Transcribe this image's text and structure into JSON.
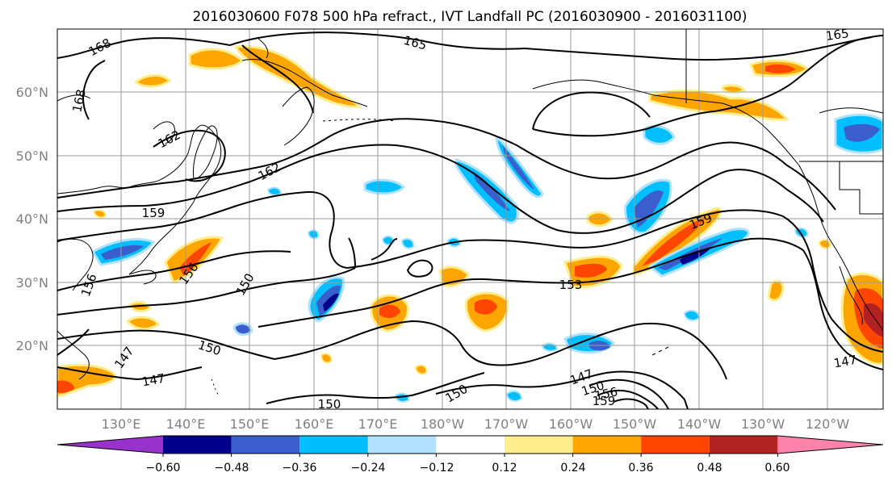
{
  "title": "2016030600 F078 500 hPa refract., IVT Landfall PC (2016030900 - 2016031100)",
  "lat_labels": [
    "60°N",
    "50°N",
    "40°N",
    "30°N",
    "20°N"
  ],
  "lon_labels": [
    "130°E",
    "140°E",
    "150°E",
    "160°E",
    "170°E",
    "180°W",
    "170°W",
    "160°W",
    "150°W",
    "140°W",
    "130°W",
    "120°W"
  ],
  "contour_labels": [
    "168",
    "165",
    "168",
    "165",
    "162",
    "162",
    "159",
    "159",
    "156",
    "156",
    "150",
    "153",
    "150",
    "147",
    "147",
    "147",
    "150",
    "150",
    "147",
    "150",
    "156",
    "159"
  ],
  "colorbar": {
    "ticks": [
      "−0.60",
      "−0.48",
      "−0.36",
      "−0.24",
      "−0.12",
      "0.12",
      "0.24",
      "0.36",
      "0.48",
      "0.60"
    ],
    "colors": [
      "#9932cc",
      "#00008b",
      "#3a5fcd",
      "#00bfff",
      "#b0e2ff",
      "#ffffff",
      "#ffec8b",
      "#ffa500",
      "#ff4500",
      "#b22222",
      "#ff82ab"
    ]
  },
  "chart_data": {
    "type": "heatmap",
    "title": "2016030600 F078 500 hPa refract., IVT Landfall PC (2016030900 - 2016031100)",
    "xlabel": "",
    "ylabel": "",
    "lat_ticks": [
      "60°N",
      "50°N",
      "40°N",
      "30°N",
      "20°N"
    ],
    "lon_ticks": [
      "130°E",
      "140°E",
      "150°E",
      "160°E",
      "170°E",
      "180°W",
      "170°W",
      "160°W",
      "150°W",
      "140°W",
      "130°W",
      "120°W"
    ],
    "contour_levels": [
      147,
      150,
      153,
      156,
      159,
      162,
      165,
      168
    ],
    "color_levels": [
      -0.6,
      -0.48,
      -0.36,
      -0.24,
      -0.12,
      0.12,
      0.24,
      0.36,
      0.48,
      0.6
    ],
    "grid": true
  }
}
